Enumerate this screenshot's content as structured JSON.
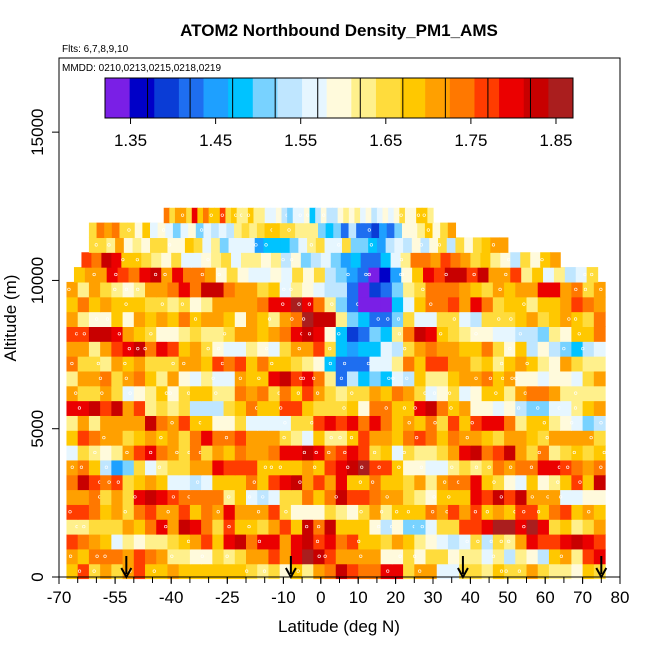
{
  "chart_data": {
    "type": "heatmap",
    "title": "ATOM2 Northbound Density_PM1_AMS",
    "flights_note": "Flts: 6,7,8,9,10",
    "dates_note": "MMDD: 0210,0213,0215,0218,0219",
    "xlabel": "Latitude (deg N)",
    "ylabel": "Altitude (m)",
    "xlim": [
      -70,
      80
    ],
    "ylim": [
      0,
      17500
    ],
    "x_ticks": [
      -70,
      -55,
      -40,
      -25,
      -10,
      0,
      10,
      20,
      30,
      40,
      50,
      60,
      70,
      80
    ],
    "x_tick_labels": [
      "-70",
      "-55",
      "-40",
      "-25",
      "-10",
      "0",
      "10",
      "20",
      "30",
      "40",
      "50",
      "60",
      "70",
      "80"
    ],
    "y_ticks": [
      0,
      5000,
      10000,
      15000
    ],
    "y_tick_labels": [
      "0",
      "5000",
      "10000",
      "15000"
    ],
    "colorbar": {
      "min": 1.32,
      "max": 1.87,
      "colors": [
        "#7a1fe6",
        "#0000c8",
        "#0a3cd6",
        "#1e6ef0",
        "#1ea0ff",
        "#00c3ff",
        "#78d2ff",
        "#bfe6ff",
        "#e6f6ff",
        "#fffadc",
        "#fff08c",
        "#ffdc3c",
        "#ffc800",
        "#ffa000",
        "#ff7800",
        "#ff3c00",
        "#eb0000",
        "#c80000",
        "#aa1e1e"
      ],
      "tick_values": [
        1.35,
        1.45,
        1.55,
        1.65,
        1.75,
        1.85
      ],
      "tick_labels": [
        "1.35",
        "1.45",
        "1.55",
        "1.65",
        "1.75",
        "1.85"
      ]
    },
    "profile_markers_lat": [
      -52,
      -8,
      38,
      75
    ],
    "altitude_levels_m": [
      200,
      700,
      1200,
      1700,
      2200,
      2700,
      3200,
      3700,
      4200,
      4700,
      5200,
      5700,
      6200,
      6700,
      7200,
      7700,
      8200,
      8700,
      9200,
      9700,
      10200,
      10700,
      11200,
      11700,
      12200
    ],
    "level_lat_ranges": [
      [
        -68,
        76
      ],
      [
        -68,
        76
      ],
      [
        -68,
        76
      ],
      [
        -68,
        76
      ],
      [
        -68,
        76
      ],
      [
        -68,
        76
      ],
      [
        -68,
        76
      ],
      [
        -68,
        76
      ],
      [
        -68,
        76
      ],
      [
        -68,
        76
      ],
      [
        -68,
        76
      ],
      [
        -68,
        76
      ],
      [
        -68,
        76
      ],
      [
        -68,
        76
      ],
      [
        -68,
        76
      ],
      [
        -68,
        76
      ],
      [
        -68,
        76
      ],
      [
        -68,
        76
      ],
      [
        -68,
        76
      ],
      [
        -68,
        76
      ],
      [
        -66,
        74
      ],
      [
        -64,
        64
      ],
      [
        -62,
        50
      ],
      [
        -62,
        36
      ],
      [
        -42,
        30
      ]
    ],
    "cells_per_level": 48,
    "background_density": 1.7,
    "anomalies": [
      {
        "lat": 14,
        "alt": 9000,
        "sig_lat": 5,
        "sig_alt": 1600,
        "delta": -0.32
      },
      {
        "lat": 6,
        "alt": 7300,
        "sig_lat": 3,
        "sig_alt": 900,
        "delta": -0.22
      },
      {
        "lat": 4,
        "alt": 11000,
        "sig_lat": 22,
        "sig_alt": 900,
        "delta": -0.14
      },
      {
        "lat": -15,
        "alt": 11800,
        "sig_lat": 18,
        "sig_alt": 600,
        "delta": -0.1
      },
      {
        "lat": 34,
        "alt": 10000,
        "sig_lat": 6,
        "sig_alt": 700,
        "delta": 0.12
      },
      {
        "lat": -2,
        "alt": 8500,
        "sig_lat": 4,
        "sig_alt": 700,
        "delta": 0.11
      },
      {
        "lat": 10,
        "alt": 4200,
        "sig_lat": 5,
        "sig_alt": 700,
        "delta": 0.12
      },
      {
        "lat": 0,
        "alt": 1100,
        "sig_lat": 4,
        "sig_alt": 500,
        "delta": 0.12
      },
      {
        "lat": 40,
        "alt": 3200,
        "sig_lat": 5,
        "sig_alt": 600,
        "delta": 0.1
      },
      {
        "lat": 55,
        "alt": 2200,
        "sig_lat": 4,
        "sig_alt": 600,
        "delta": 0.1
      },
      {
        "lat": 25,
        "alt": 2200,
        "sig_lat": 6,
        "sig_alt": 900,
        "delta": -0.1
      },
      {
        "lat": -55,
        "alt": 3800,
        "sig_lat": 3,
        "sig_alt": 500,
        "delta": -0.12
      },
      {
        "lat": 45,
        "alt": 500,
        "sig_lat": 10,
        "sig_alt": 500,
        "delta": -0.09
      },
      {
        "lat": 65,
        "alt": 6500,
        "sig_lat": 6,
        "sig_alt": 1500,
        "delta": -0.1
      },
      {
        "lat": -30,
        "alt": 6800,
        "sig_lat": 8,
        "sig_alt": 900,
        "delta": -0.08
      },
      {
        "lat": 50,
        "alt": 7800,
        "sig_lat": 8,
        "sig_alt": 1200,
        "delta": -0.09
      }
    ]
  }
}
